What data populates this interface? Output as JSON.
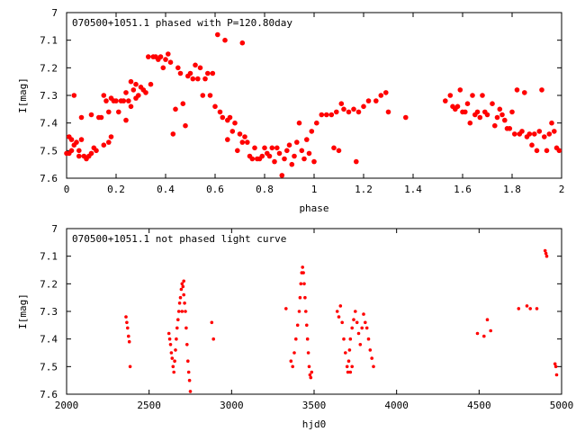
{
  "chart_data": [
    {
      "type": "scatter",
      "title": "070500+1051.1 phased with P=120.80day",
      "xlabel": "phase",
      "ylabel": "I[mag]",
      "xlim": [
        0,
        2
      ],
      "ylim": [
        7,
        7.6
      ],
      "y_inverted": true,
      "grid": false,
      "x_ticks": [
        "0",
        "0.2",
        "0.4",
        "0.6",
        "0.8",
        "1",
        "1.2",
        "1.4",
        "1.6",
        "1.8",
        "2"
      ],
      "y_ticks": [
        "7",
        "7.1",
        "7.2",
        "7.3",
        "7.4",
        "7.5",
        "7.6"
      ],
      "marker_color": "#ff0000",
      "points": [
        [
          0.0,
          7.51
        ],
        [
          0.01,
          7.45
        ],
        [
          0.01,
          7.51
        ],
        [
          0.02,
          7.5
        ],
        [
          0.02,
          7.46
        ],
        [
          0.03,
          7.48
        ],
        [
          0.03,
          7.3
        ],
        [
          0.04,
          7.47
        ],
        [
          0.05,
          7.5
        ],
        [
          0.05,
          7.52
        ],
        [
          0.06,
          7.38
        ],
        [
          0.06,
          7.46
        ],
        [
          0.07,
          7.52
        ],
        [
          0.08,
          7.53
        ],
        [
          0.09,
          7.52
        ],
        [
          0.1,
          7.51
        ],
        [
          0.1,
          7.37
        ],
        [
          0.11,
          7.49
        ],
        [
          0.12,
          7.5
        ],
        [
          0.13,
          7.38
        ],
        [
          0.14,
          7.38
        ],
        [
          0.15,
          7.3
        ],
        [
          0.15,
          7.48
        ],
        [
          0.16,
          7.32
        ],
        [
          0.17,
          7.47
        ],
        [
          0.17,
          7.36
        ],
        [
          0.18,
          7.45
        ],
        [
          0.18,
          7.31
        ],
        [
          0.19,
          7.32
        ],
        [
          0.2,
          7.32
        ],
        [
          0.21,
          7.36
        ],
        [
          0.22,
          7.32
        ],
        [
          0.23,
          7.32
        ],
        [
          0.24,
          7.39
        ],
        [
          0.24,
          7.29
        ],
        [
          0.25,
          7.32
        ],
        [
          0.26,
          7.25
        ],
        [
          0.26,
          7.34
        ],
        [
          0.27,
          7.28
        ],
        [
          0.28,
          7.26
        ],
        [
          0.28,
          7.31
        ],
        [
          0.29,
          7.3
        ],
        [
          0.3,
          7.27
        ],
        [
          0.31,
          7.28
        ],
        [
          0.32,
          7.29
        ],
        [
          0.33,
          7.16
        ],
        [
          0.34,
          7.26
        ],
        [
          0.35,
          7.16
        ],
        [
          0.36,
          7.16
        ],
        [
          0.37,
          7.17
        ],
        [
          0.38,
          7.16
        ],
        [
          0.39,
          7.2
        ],
        [
          0.4,
          7.17
        ],
        [
          0.41,
          7.15
        ],
        [
          0.42,
          7.18
        ],
        [
          0.43,
          7.44
        ],
        [
          0.44,
          7.35
        ],
        [
          0.45,
          7.2
        ],
        [
          0.46,
          7.22
        ],
        [
          0.47,
          7.33
        ],
        [
          0.48,
          7.41
        ],
        [
          0.49,
          7.23
        ],
        [
          0.5,
          7.22
        ],
        [
          0.51,
          7.24
        ],
        [
          0.52,
          7.19
        ],
        [
          0.53,
          7.24
        ],
        [
          0.54,
          7.2
        ],
        [
          0.55,
          7.3
        ],
        [
          0.56,
          7.24
        ],
        [
          0.57,
          7.22
        ],
        [
          0.58,
          7.3
        ],
        [
          0.59,
          7.22
        ],
        [
          0.6,
          7.34
        ],
        [
          0.61,
          7.08
        ],
        [
          0.62,
          7.36
        ],
        [
          0.63,
          7.38
        ],
        [
          0.64,
          7.1
        ],
        [
          0.65,
          7.39
        ],
        [
          0.65,
          7.46
        ],
        [
          0.66,
          7.38
        ],
        [
          0.67,
          7.43
        ],
        [
          0.68,
          7.4
        ],
        [
          0.69,
          7.5
        ],
        [
          0.7,
          7.44
        ],
        [
          0.71,
          7.11
        ],
        [
          0.71,
          7.47
        ],
        [
          0.72,
          7.45
        ],
        [
          0.73,
          7.47
        ],
        [
          0.74,
          7.52
        ],
        [
          0.75,
          7.53
        ],
        [
          0.76,
          7.49
        ],
        [
          0.77,
          7.53
        ],
        [
          0.78,
          7.53
        ],
        [
          0.79,
          7.52
        ],
        [
          0.8,
          7.49
        ],
        [
          0.81,
          7.51
        ],
        [
          0.82,
          7.52
        ],
        [
          0.83,
          7.49
        ],
        [
          0.84,
          7.54
        ],
        [
          0.85,
          7.49
        ],
        [
          0.86,
          7.51
        ],
        [
          0.87,
          7.59
        ],
        [
          0.88,
          7.53
        ],
        [
          0.89,
          7.5
        ],
        [
          0.9,
          7.48
        ],
        [
          0.91,
          7.55
        ],
        [
          0.92,
          7.52
        ],
        [
          0.93,
          7.47
        ],
        [
          0.94,
          7.4
        ],
        [
          0.95,
          7.5
        ],
        [
          0.96,
          7.53
        ],
        [
          0.97,
          7.46
        ],
        [
          0.98,
          7.51
        ],
        [
          0.99,
          7.43
        ],
        [
          1.0,
          7.54
        ],
        [
          1.01,
          7.4
        ],
        [
          1.03,
          7.37
        ],
        [
          1.05,
          7.37
        ],
        [
          1.07,
          7.37
        ],
        [
          1.08,
          7.49
        ],
        [
          1.09,
          7.36
        ],
        [
          1.1,
          7.5
        ],
        [
          1.11,
          7.33
        ],
        [
          1.12,
          7.35
        ],
        [
          1.14,
          7.36
        ],
        [
          1.16,
          7.35
        ],
        [
          1.17,
          7.54
        ],
        [
          1.18,
          7.36
        ],
        [
          1.2,
          7.34
        ],
        [
          1.22,
          7.32
        ],
        [
          1.25,
          7.32
        ],
        [
          1.27,
          7.3
        ],
        [
          1.29,
          7.29
        ],
        [
          1.3,
          7.36
        ],
        [
          1.37,
          7.38
        ],
        [
          1.53,
          7.32
        ],
        [
          1.55,
          7.3
        ],
        [
          1.56,
          7.34
        ],
        [
          1.57,
          7.35
        ],
        [
          1.58,
          7.34
        ],
        [
          1.59,
          7.28
        ],
        [
          1.6,
          7.36
        ],
        [
          1.61,
          7.36
        ],
        [
          1.62,
          7.33
        ],
        [
          1.63,
          7.4
        ],
        [
          1.64,
          7.3
        ],
        [
          1.65,
          7.37
        ],
        [
          1.66,
          7.36
        ],
        [
          1.67,
          7.38
        ],
        [
          1.68,
          7.3
        ],
        [
          1.69,
          7.36
        ],
        [
          1.7,
          7.37
        ],
        [
          1.72,
          7.33
        ],
        [
          1.73,
          7.41
        ],
        [
          1.74,
          7.38
        ],
        [
          1.75,
          7.35
        ],
        [
          1.76,
          7.37
        ],
        [
          1.77,
          7.39
        ],
        [
          1.78,
          7.42
        ],
        [
          1.79,
          7.42
        ],
        [
          1.8,
          7.36
        ],
        [
          1.81,
          7.44
        ],
        [
          1.82,
          7.28
        ],
        [
          1.83,
          7.44
        ],
        [
          1.84,
          7.43
        ],
        [
          1.85,
          7.29
        ],
        [
          1.86,
          7.45
        ],
        [
          1.87,
          7.44
        ],
        [
          1.88,
          7.48
        ],
        [
          1.89,
          7.44
        ],
        [
          1.9,
          7.5
        ],
        [
          1.91,
          7.43
        ],
        [
          1.92,
          7.28
        ],
        [
          1.93,
          7.45
        ],
        [
          1.94,
          7.5
        ],
        [
          1.95,
          7.44
        ],
        [
          1.96,
          7.4
        ],
        [
          1.97,
          7.43
        ],
        [
          1.98,
          7.49
        ],
        [
          1.99,
          7.5
        ]
      ]
    },
    {
      "type": "scatter",
      "title": "070500+1051.1 not phased light curve",
      "xlabel": "hjd0",
      "ylabel": "I[mag]",
      "xlim": [
        2000,
        5000
      ],
      "ylim": [
        7,
        7.6
      ],
      "y_inverted": true,
      "grid": false,
      "x_ticks": [
        "2000",
        "2500",
        "3000",
        "3500",
        "4000",
        "4500",
        "5000"
      ],
      "y_ticks": [
        "7",
        "7.1",
        "7.2",
        "7.3",
        "7.4",
        "7.5",
        "7.6"
      ],
      "marker_color": "#ff0000",
      "points": [
        [
          2360,
          7.32
        ],
        [
          2365,
          7.34
        ],
        [
          2370,
          7.36
        ],
        [
          2375,
          7.39
        ],
        [
          2380,
          7.41
        ],
        [
          2385,
          7.5
        ],
        [
          2620,
          7.38
        ],
        [
          2625,
          7.4
        ],
        [
          2630,
          7.42
        ],
        [
          2635,
          7.45
        ],
        [
          2640,
          7.47
        ],
        [
          2645,
          7.5
        ],
        [
          2650,
          7.52
        ],
        [
          2655,
          7.48
        ],
        [
          2660,
          7.44
        ],
        [
          2665,
          7.4
        ],
        [
          2670,
          7.36
        ],
        [
          2675,
          7.33
        ],
        [
          2680,
          7.3
        ],
        [
          2685,
          7.27
        ],
        [
          2690,
          7.25
        ],
        [
          2695,
          7.22
        ],
        [
          2700,
          7.2
        ],
        [
          2705,
          7.21
        ],
        [
          2710,
          7.24
        ],
        [
          2715,
          7.27
        ],
        [
          2720,
          7.3
        ],
        [
          2725,
          7.36
        ],
        [
          2730,
          7.42
        ],
        [
          2735,
          7.48
        ],
        [
          2740,
          7.52
        ],
        [
          2745,
          7.55
        ],
        [
          2750,
          7.59
        ],
        [
          2700,
          7.3
        ],
        [
          2710,
          7.19
        ],
        [
          2880,
          7.34
        ],
        [
          2890,
          7.4
        ],
        [
          3330,
          7.29
        ],
        [
          3360,
          7.48
        ],
        [
          3370,
          7.5
        ],
        [
          3380,
          7.45
        ],
        [
          3390,
          7.4
        ],
        [
          3400,
          7.35
        ],
        [
          3410,
          7.3
        ],
        [
          3415,
          7.25
        ],
        [
          3420,
          7.2
        ],
        [
          3425,
          7.16
        ],
        [
          3430,
          7.14
        ],
        [
          3435,
          7.16
        ],
        [
          3440,
          7.2
        ],
        [
          3445,
          7.25
        ],
        [
          3450,
          7.3
        ],
        [
          3455,
          7.35
        ],
        [
          3460,
          7.4
        ],
        [
          3465,
          7.45
        ],
        [
          3470,
          7.5
        ],
        [
          3475,
          7.53
        ],
        [
          3480,
          7.54
        ],
        [
          3485,
          7.52
        ],
        [
          3640,
          7.3
        ],
        [
          3650,
          7.32
        ],
        [
          3660,
          7.28
        ],
        [
          3670,
          7.34
        ],
        [
          3680,
          7.4
        ],
        [
          3690,
          7.45
        ],
        [
          3700,
          7.5
        ],
        [
          3705,
          7.52
        ],
        [
          3710,
          7.48
        ],
        [
          3715,
          7.44
        ],
        [
          3720,
          7.4
        ],
        [
          3730,
          7.36
        ],
        [
          3740,
          7.33
        ],
        [
          3750,
          7.3
        ],
        [
          3760,
          7.34
        ],
        [
          3770,
          7.38
        ],
        [
          3780,
          7.42
        ],
        [
          3790,
          7.36
        ],
        [
          3800,
          7.31
        ],
        [
          3810,
          7.34
        ],
        [
          3820,
          7.36
        ],
        [
          3830,
          7.4
        ],
        [
          3840,
          7.44
        ],
        [
          3850,
          7.47
        ],
        [
          3860,
          7.5
        ],
        [
          3720,
          7.52
        ],
        [
          3730,
          7.5
        ],
        [
          4490,
          7.38
        ],
        [
          4530,
          7.39
        ],
        [
          4550,
          7.33
        ],
        [
          4570,
          7.37
        ],
        [
          4740,
          7.29
        ],
        [
          4790,
          7.28
        ],
        [
          4810,
          7.29
        ],
        [
          4850,
          7.29
        ],
        [
          4900,
          7.08
        ],
        [
          4905,
          7.09
        ],
        [
          4910,
          7.1
        ],
        [
          4960,
          7.49
        ],
        [
          4965,
          7.5
        ],
        [
          4970,
          7.53
        ]
      ]
    }
  ]
}
